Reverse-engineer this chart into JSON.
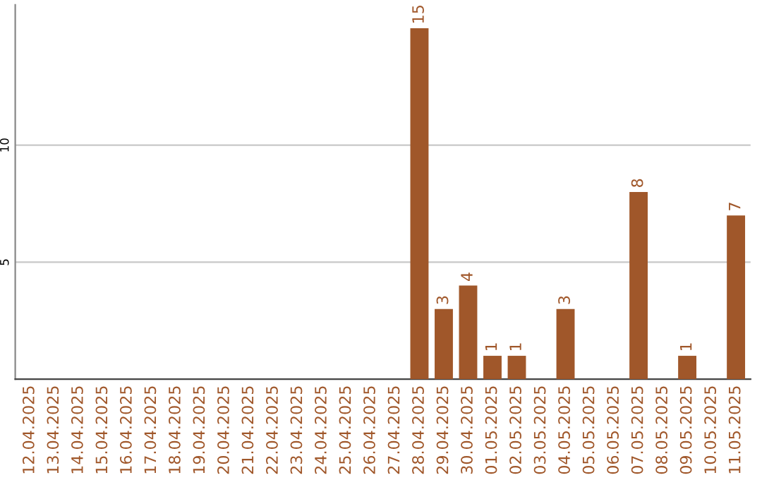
{
  "chart_data": {
    "type": "bar",
    "categories": [
      "12.04.2025",
      "13.04.2025",
      "14.04.2025",
      "15.04.2025",
      "16.04.2025",
      "17.04.2025",
      "18.04.2025",
      "19.04.2025",
      "20.04.2025",
      "21.04.2025",
      "22.04.2025",
      "23.04.2025",
      "24.04.2025",
      "25.04.2025",
      "26.04.2025",
      "27.04.2025",
      "28.04.2025",
      "29.04.2025",
      "30.04.2025",
      "01.05.2025",
      "02.05.2025",
      "03.05.2025",
      "04.05.2025",
      "05.05.2025",
      "06.05.2025",
      "07.05.2025",
      "08.05.2025",
      "09.05.2025",
      "10.05.2025",
      "11.05.2025"
    ],
    "values": [
      0,
      0,
      0,
      0,
      0,
      0,
      0,
      0,
      0,
      0,
      0,
      0,
      0,
      0,
      0,
      0,
      15,
      3,
      4,
      1,
      1,
      0,
      3,
      0,
      0,
      8,
      0,
      1,
      0,
      7
    ],
    "value_labels": [
      null,
      null,
      null,
      null,
      null,
      null,
      null,
      null,
      null,
      null,
      null,
      null,
      null,
      null,
      null,
      null,
      "15",
      "3",
      "4",
      "1",
      "1",
      null,
      "3",
      null,
      null,
      "8",
      null,
      "1",
      null,
      "7"
    ],
    "color": "#a0572a",
    "ylim": [
      0,
      16
    ],
    "yticks": [
      5,
      10
    ],
    "grid": "y"
  }
}
